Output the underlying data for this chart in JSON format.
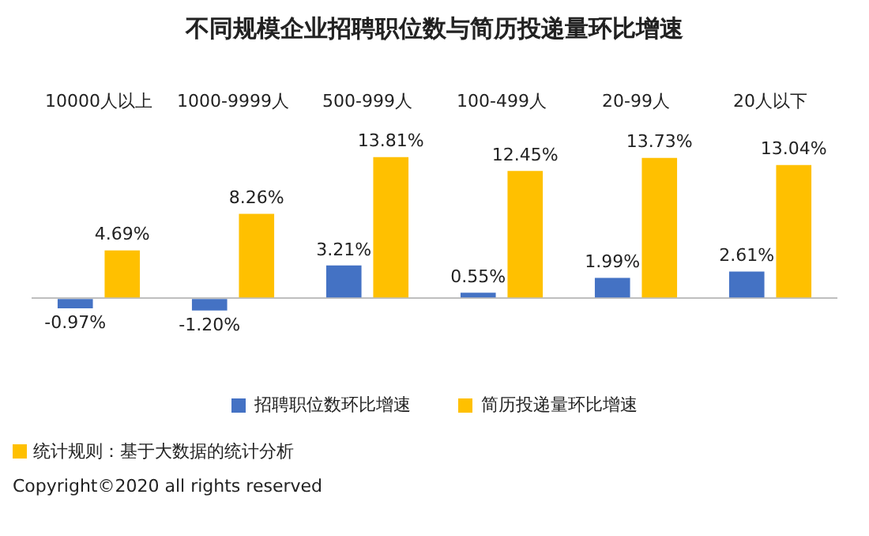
{
  "chart_data": {
    "type": "bar",
    "title": "不同规模企业招聘职位数与简历投递量环比增速",
    "categories": [
      "10000人以上",
      "1000-9999人",
      "500-999人",
      "100-499人",
      "20-99人",
      "20人以下"
    ],
    "series": [
      {
        "name": "招聘职位数环比增速",
        "color": "#4472c4",
        "values": [
          -0.97,
          -1.2,
          3.21,
          0.55,
          1.99,
          2.61
        ],
        "value_labels": [
          "-0.97%",
          "-1.20%",
          "3.21%",
          "0.55%",
          "1.99%",
          "2.61%"
        ]
      },
      {
        "name": "简历投递量环比增速",
        "color": "#ffc000",
        "values": [
          4.69,
          8.26,
          13.81,
          12.45,
          13.73,
          13.04
        ],
        "value_labels": [
          "4.69%",
          "8.26%",
          "13.81%",
          "12.45%",
          "13.73%",
          "13.04%"
        ]
      }
    ],
    "legend": "bottom",
    "grid": false,
    "annotations": [
      "统计规则：基于大数据的统计分析",
      "Copyright©2020 all rights reserved"
    ]
  }
}
